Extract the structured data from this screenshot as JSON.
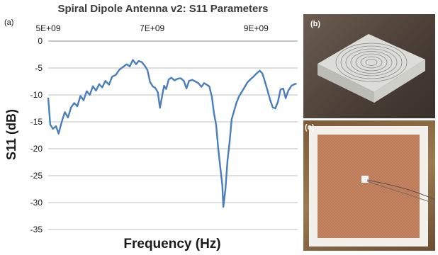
{
  "panels": {
    "a_label": "(a)",
    "b_label": "(b)",
    "c_label": "(c)"
  },
  "photos": {
    "b_subject": "white square box with engraved spiral antenna",
    "c_subject": "square copper mesh sheet on white board with feed wires"
  },
  "colors": {
    "line": "#4a7ebb",
    "grid": "#bfbfbf",
    "axis_text": "#1a1a1a",
    "title": "#3a3a3a"
  },
  "chart_data": {
    "type": "line",
    "title": "Spiral Dipole Antenna v2: S11 Parameters",
    "xlabel": "Frequency (Hz)",
    "ylabel": "S11 (dB)",
    "xlim": [
      5000000000,
      9800000000
    ],
    "ylim": [
      -35,
      0
    ],
    "grid": true,
    "x_axis_position": "top",
    "x_ticks": [
      {
        "value": 5000000000,
        "label": "5E+09"
      },
      {
        "value": 7000000000,
        "label": "7E+09"
      },
      {
        "value": 9000000000,
        "label": "9E+09"
      }
    ],
    "y_ticks": [
      0,
      -5,
      -10,
      -15,
      -20,
      -25,
      -30,
      -35
    ],
    "series": [
      {
        "points": [
          [
            5000000000,
            -10.5
          ],
          [
            5040000000,
            -15.5
          ],
          [
            5090000000,
            -16.3
          ],
          [
            5150000000,
            -15.8
          ],
          [
            5200000000,
            -17.2
          ],
          [
            5260000000,
            -15.0
          ],
          [
            5320000000,
            -13.2
          ],
          [
            5380000000,
            -14.2
          ],
          [
            5440000000,
            -12.3
          ],
          [
            5500000000,
            -11.5
          ],
          [
            5560000000,
            -12.1
          ],
          [
            5620000000,
            -10.2
          ],
          [
            5680000000,
            -11.0
          ],
          [
            5740000000,
            -9.3
          ],
          [
            5800000000,
            -10.0
          ],
          [
            5860000000,
            -8.4
          ],
          [
            5920000000,
            -9.2
          ],
          [
            5980000000,
            -8.0
          ],
          [
            6040000000,
            -8.6
          ],
          [
            6100000000,
            -7.4
          ],
          [
            6170000000,
            -8.1
          ],
          [
            6230000000,
            -6.6
          ],
          [
            6300000000,
            -6.3
          ],
          [
            6370000000,
            -5.3
          ],
          [
            6440000000,
            -4.8
          ],
          [
            6510000000,
            -4.3
          ],
          [
            6570000000,
            -4.7
          ],
          [
            6630000000,
            -3.5
          ],
          [
            6690000000,
            -4.3
          ],
          [
            6740000000,
            -3.7
          ],
          [
            6800000000,
            -3.9
          ],
          [
            6860000000,
            -4.6
          ],
          [
            6910000000,
            -5.4
          ],
          [
            6960000000,
            -7.6
          ],
          [
            7010000000,
            -8.4
          ],
          [
            7060000000,
            -8.7
          ],
          [
            7110000000,
            -9.5
          ],
          [
            7150000000,
            -12.4
          ],
          [
            7190000000,
            -10.3
          ],
          [
            7230000000,
            -8.3
          ],
          [
            7270000000,
            -8.9
          ],
          [
            7320000000,
            -7.1
          ],
          [
            7370000000,
            -6.8
          ],
          [
            7430000000,
            -7.3
          ],
          [
            7490000000,
            -7.0
          ],
          [
            7550000000,
            -6.9
          ],
          [
            7610000000,
            -7.4
          ],
          [
            7660000000,
            -8.8
          ],
          [
            7710000000,
            -7.4
          ],
          [
            7770000000,
            -7.2
          ],
          [
            7830000000,
            -7.5
          ],
          [
            7890000000,
            -7.8
          ],
          [
            7950000000,
            -8.5
          ],
          [
            8000000000,
            -7.8
          ],
          [
            8050000000,
            -8.1
          ],
          [
            8100000000,
            -8.4
          ],
          [
            8150000000,
            -10.4
          ],
          [
            8190000000,
            -13.4
          ],
          [
            8230000000,
            -15.5
          ],
          [
            8270000000,
            -19.8
          ],
          [
            8310000000,
            -23.3
          ],
          [
            8350000000,
            -26.8
          ],
          [
            8370000000,
            -30.8
          ],
          [
            8410000000,
            -27.5
          ],
          [
            8450000000,
            -22.2
          ],
          [
            8490000000,
            -18.8
          ],
          [
            8530000000,
            -14.5
          ],
          [
            8570000000,
            -13.2
          ],
          [
            8620000000,
            -11.5
          ],
          [
            8670000000,
            -10.3
          ],
          [
            8720000000,
            -9.5
          ],
          [
            8770000000,
            -8.7
          ],
          [
            8830000000,
            -7.7
          ],
          [
            8890000000,
            -7.1
          ],
          [
            8950000000,
            -6.6
          ],
          [
            9010000000,
            -6.0
          ],
          [
            9070000000,
            -5.5
          ],
          [
            9120000000,
            -6.0
          ],
          [
            9170000000,
            -7.5
          ],
          [
            9220000000,
            -9.2
          ],
          [
            9270000000,
            -10.9
          ],
          [
            9320000000,
            -12.3
          ],
          [
            9370000000,
            -12.5
          ],
          [
            9420000000,
            -11.3
          ],
          [
            9470000000,
            -9.0
          ],
          [
            9520000000,
            -8.8
          ],
          [
            9570000000,
            -10.6
          ],
          [
            9620000000,
            -9.2
          ],
          [
            9680000000,
            -8.3
          ],
          [
            9740000000,
            -8.0
          ],
          [
            9780000000,
            -7.9
          ]
        ]
      }
    ]
  }
}
